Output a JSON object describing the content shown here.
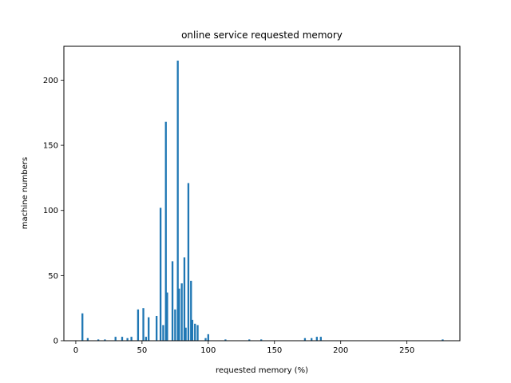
{
  "chart_data": {
    "type": "bar",
    "title": "online service requested memory",
    "xlabel": "requested memory (%)",
    "ylabel": "machine numbers",
    "xlim": [
      -9,
      290
    ],
    "ylim": [
      0,
      226
    ],
    "xticks": [
      0,
      50,
      100,
      150,
      200,
      250
    ],
    "yticks": [
      0,
      50,
      100,
      150,
      200
    ],
    "bin_width": 1.39,
    "bar_color": "#1f77b4",
    "grid": false,
    "bins": [
      {
        "x": 5,
        "value": 21
      },
      {
        "x": 9,
        "value": 2
      },
      {
        "x": 17,
        "value": 1
      },
      {
        "x": 22,
        "value": 1
      },
      {
        "x": 30,
        "value": 3
      },
      {
        "x": 35,
        "value": 3
      },
      {
        "x": 39,
        "value": 2
      },
      {
        "x": 42,
        "value": 3
      },
      {
        "x": 47,
        "value": 24
      },
      {
        "x": 51,
        "value": 25
      },
      {
        "x": 53,
        "value": 3
      },
      {
        "x": 55,
        "value": 18
      },
      {
        "x": 61,
        "value": 19
      },
      {
        "x": 64,
        "value": 102
      },
      {
        "x": 66,
        "value": 12
      },
      {
        "x": 68,
        "value": 168
      },
      {
        "x": 69,
        "value": 37
      },
      {
        "x": 73,
        "value": 61
      },
      {
        "x": 75,
        "value": 24
      },
      {
        "x": 77,
        "value": 215
      },
      {
        "x": 78,
        "value": 40
      },
      {
        "x": 80,
        "value": 44
      },
      {
        "x": 82,
        "value": 64
      },
      {
        "x": 83,
        "value": 10
      },
      {
        "x": 85,
        "value": 121
      },
      {
        "x": 87,
        "value": 46
      },
      {
        "x": 88,
        "value": 16
      },
      {
        "x": 90,
        "value": 13
      },
      {
        "x": 92,
        "value": 12
      },
      {
        "x": 98,
        "value": 2
      },
      {
        "x": 100,
        "value": 5
      },
      {
        "x": 113,
        "value": 1
      },
      {
        "x": 131,
        "value": 1
      },
      {
        "x": 140,
        "value": 1
      },
      {
        "x": 173,
        "value": 2
      },
      {
        "x": 178,
        "value": 2
      },
      {
        "x": 182,
        "value": 3
      },
      {
        "x": 185,
        "value": 3
      },
      {
        "x": 277,
        "value": 1
      }
    ]
  }
}
